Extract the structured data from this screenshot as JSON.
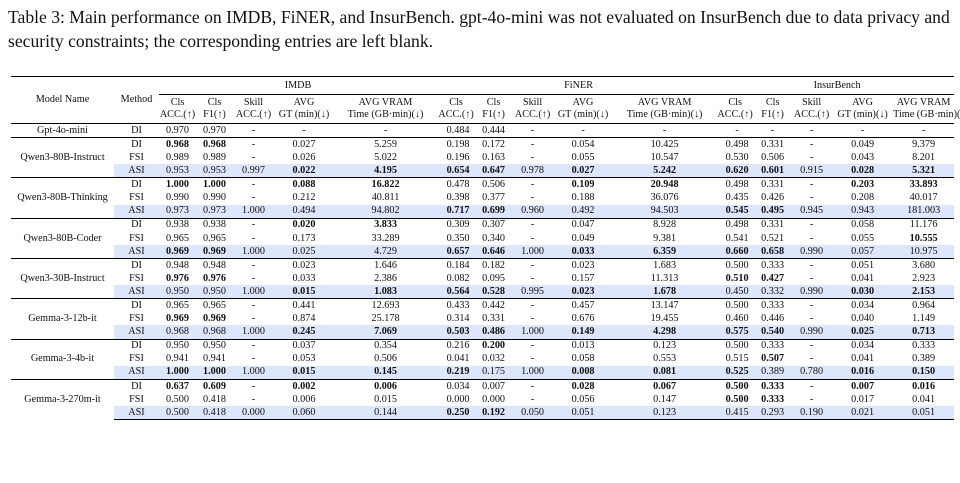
{
  "caption": "Table 3: Main performance on IMDB, FiNER, and InsurBench. gpt-4o-mini was not evaluated on InsurBench due to data privacy and security constraints; the corresponding entries are left blank.",
  "header": {
    "model_name": "Model Name",
    "method": "Method",
    "datasets": [
      "IMDB",
      "FiNER",
      "InsurBench"
    ],
    "metrics": [
      [
        "Cls",
        "ACC.(↑)"
      ],
      [
        "Cls",
        "F1(↑)"
      ],
      [
        "Skill",
        "ACC.(↑)"
      ],
      [
        "AVG",
        "GT (min)(↓)"
      ],
      [
        "AVG VRAM",
        "Time (GB·min)(↓)"
      ]
    ]
  },
  "groups": [
    {
      "model": "Gpt-4o-mini",
      "rows": [
        {
          "method": "DI",
          "cells": [
            "0.970",
            "0.970",
            "-",
            "-",
            "-",
            "0.484",
            "0.444",
            "-",
            "-",
            "-",
            "-",
            "-",
            "-",
            "-",
            "-"
          ],
          "bold": []
        }
      ]
    },
    {
      "model": "Qwen3-80B-Instruct",
      "rows": [
        {
          "method": "DI",
          "cells": [
            "0.968",
            "0.968",
            "-",
            "0.027",
            "5.259",
            "0.198",
            "0.172",
            "-",
            "0.054",
            "10.425",
            "0.498",
            "0.331",
            "-",
            "0.049",
            "9.379"
          ],
          "bold": [
            0,
            1
          ]
        },
        {
          "method": "FSI",
          "cells": [
            "0.989",
            "0.989",
            "-",
            "0.026",
            "5.022",
            "0.196",
            "0.163",
            "-",
            "0.055",
            "10.547",
            "0.530",
            "0.506",
            "-",
            "0.043",
            "8.201"
          ],
          "bold": []
        },
        {
          "method": "ASI",
          "cells": [
            "0.953",
            "0.953",
            "0.997",
            "0.022",
            "4.195",
            "0.654",
            "0.647",
            "0.978",
            "0.027",
            "5.242",
            "0.620",
            "0.601",
            "0.915",
            "0.028",
            "5.321"
          ],
          "bold": [
            3,
            4,
            5,
            6,
            8,
            9,
            10,
            11,
            13,
            14
          ]
        }
      ]
    },
    {
      "model": "Qwen3-80B-Thinking",
      "rows": [
        {
          "method": "DI",
          "cells": [
            "1.000",
            "1.000",
            "-",
            "0.088",
            "16.822",
            "0.478",
            "0.506",
            "-",
            "0.109",
            "20.948",
            "0.498",
            "0.331",
            "-",
            "0.203",
            "33.893"
          ],
          "bold": [
            0,
            1,
            3,
            4,
            8,
            9,
            13,
            14
          ]
        },
        {
          "method": "FSI",
          "cells": [
            "0.990",
            "0.990",
            "-",
            "0.212",
            "40.811",
            "0.398",
            "0.377",
            "-",
            "0.188",
            "36.076",
            "0.435",
            "0.426",
            "-",
            "0.208",
            "40.017"
          ],
          "bold": []
        },
        {
          "method": "ASI",
          "cells": [
            "0.973",
            "0.973",
            "1.000",
            "0.494",
            "94.802",
            "0.717",
            "0.699",
            "0.960",
            "0.492",
            "94.503",
            "0.545",
            "0.495",
            "0.945",
            "0.943",
            "181.003"
          ],
          "bold": [
            5,
            6,
            10,
            11
          ]
        }
      ]
    },
    {
      "model": "Qwen3-80B-Coder",
      "rows": [
        {
          "method": "DI",
          "cells": [
            "0.938",
            "0.938",
            "-",
            "0.020",
            "3.833",
            "0.309",
            "0.307",
            "-",
            "0.047",
            "8.928",
            "0.498",
            "0.331",
            "-",
            "0.058",
            "11.176"
          ],
          "bold": [
            3,
            4
          ]
        },
        {
          "method": "FSI",
          "cells": [
            "0.965",
            "0.965",
            "-",
            "0.173",
            "33.289",
            "0.350",
            "0.340",
            "-",
            "0.049",
            "9.381",
            "0.541",
            "0.521",
            "-",
            "0.055",
            "10.555"
          ],
          "bold": [
            14
          ]
        },
        {
          "method": "ASI",
          "cells": [
            "0.969",
            "0.969",
            "1.000",
            "0.025",
            "4.729",
            "0.657",
            "0.646",
            "1.000",
            "0.033",
            "6.359",
            "0.660",
            "0.658",
            "0.990",
            "0.057",
            "10.975"
          ],
          "bold": [
            0,
            1,
            5,
            6,
            8,
            9,
            10,
            11
          ]
        }
      ]
    },
    {
      "model": "Qwen3-30B-Instruct",
      "rows": [
        {
          "method": "DI",
          "cells": [
            "0.948",
            "0.948",
            "-",
            "0.023",
            "1.646",
            "0.184",
            "0.182",
            "-",
            "0.023",
            "1.683",
            "0.500",
            "0.333",
            "-",
            "0.051",
            "3.680"
          ],
          "bold": []
        },
        {
          "method": "FSI",
          "cells": [
            "0.976",
            "0.976",
            "-",
            "0.033",
            "2.386",
            "0.082",
            "0.095",
            "-",
            "0.157",
            "11.313",
            "0.510",
            "0.427",
            "-",
            "0.041",
            "2.923"
          ],
          "bold": [
            0,
            1,
            10,
            11
          ]
        },
        {
          "method": "ASI",
          "cells": [
            "0.950",
            "0.950",
            "1.000",
            "0.015",
            "1.083",
            "0.564",
            "0.528",
            "0.995",
            "0.023",
            "1.678",
            "0.450",
            "0.332",
            "0.990",
            "0.030",
            "2.153"
          ],
          "bold": [
            3,
            4,
            5,
            6,
            8,
            9,
            13,
            14
          ]
        }
      ]
    },
    {
      "model": "Gemma-3-12b-it",
      "rows": [
        {
          "method": "DI",
          "cells": [
            "0.965",
            "0.965",
            "-",
            "0.441",
            "12.693",
            "0.433",
            "0.442",
            "-",
            "0.457",
            "13.147",
            "0.500",
            "0.333",
            "-",
            "0.034",
            "0.964"
          ],
          "bold": []
        },
        {
          "method": "FSI",
          "cells": [
            "0.969",
            "0.969",
            "-",
            "0.874",
            "25.178",
            "0.314",
            "0.331",
            "-",
            "0.676",
            "19.455",
            "0.460",
            "0.446",
            "-",
            "0.040",
            "1.149"
          ],
          "bold": [
            0,
            1
          ]
        },
        {
          "method": "ASI",
          "cells": [
            "0.968",
            "0.968",
            "1.000",
            "0.245",
            "7.069",
            "0.503",
            "0.486",
            "1.000",
            "0.149",
            "4.298",
            "0.575",
            "0.540",
            "0.990",
            "0.025",
            "0.713"
          ],
          "bold": [
            3,
            4,
            5,
            6,
            8,
            9,
            10,
            11,
            13,
            14
          ]
        }
      ]
    },
    {
      "model": "Gemma-3-4b-it",
      "rows": [
        {
          "method": "DI",
          "cells": [
            "0.950",
            "0.950",
            "-",
            "0.037",
            "0.354",
            "0.216",
            "0.200",
            "-",
            "0.013",
            "0.123",
            "0.500",
            "0.333",
            "-",
            "0.034",
            "0.333"
          ],
          "bold": [
            6
          ]
        },
        {
          "method": "FSI",
          "cells": [
            "0.941",
            "0.941",
            "-",
            "0.053",
            "0.506",
            "0.041",
            "0.032",
            "-",
            "0.058",
            "0.553",
            "0.515",
            "0.507",
            "-",
            "0.041",
            "0.389"
          ],
          "bold": [
            11
          ]
        },
        {
          "method": "ASI",
          "cells": [
            "1.000",
            "1.000",
            "1.000",
            "0.015",
            "0.145",
            "0.219",
            "0.175",
            "1.000",
            "0.008",
            "0.081",
            "0.525",
            "0.389",
            "0.780",
            "0.016",
            "0.150"
          ],
          "bold": [
            0,
            1,
            3,
            4,
            5,
            8,
            9,
            10,
            13,
            14
          ]
        }
      ]
    },
    {
      "model": "Gemma-3-270m-it",
      "rows": [
        {
          "method": "DI",
          "cells": [
            "0.637",
            "0.609",
            "-",
            "0.002",
            "0.006",
            "0.034",
            "0.007",
            "-",
            "0.028",
            "0.067",
            "0.500",
            "0.333",
            "-",
            "0.007",
            "0.016"
          ],
          "bold": [
            0,
            1,
            3,
            4,
            8,
            9,
            10,
            11,
            13,
            14
          ]
        },
        {
          "method": "FSI",
          "cells": [
            "0.500",
            "0.418",
            "-",
            "0.006",
            "0.015",
            "0.000",
            "0.000",
            "-",
            "0.056",
            "0.147",
            "0.500",
            "0.333",
            "-",
            "0.017",
            "0.041"
          ],
          "bold": [
            10,
            11
          ]
        },
        {
          "method": "ASI",
          "cells": [
            "0.500",
            "0.418",
            "0.000",
            "0.060",
            "0.144",
            "0.250",
            "0.192",
            "0.050",
            "0.051",
            "0.123",
            "0.415",
            "0.293",
            "0.190",
            "0.021",
            "0.051"
          ],
          "bold": [
            5,
            6
          ]
        }
      ]
    }
  ]
}
